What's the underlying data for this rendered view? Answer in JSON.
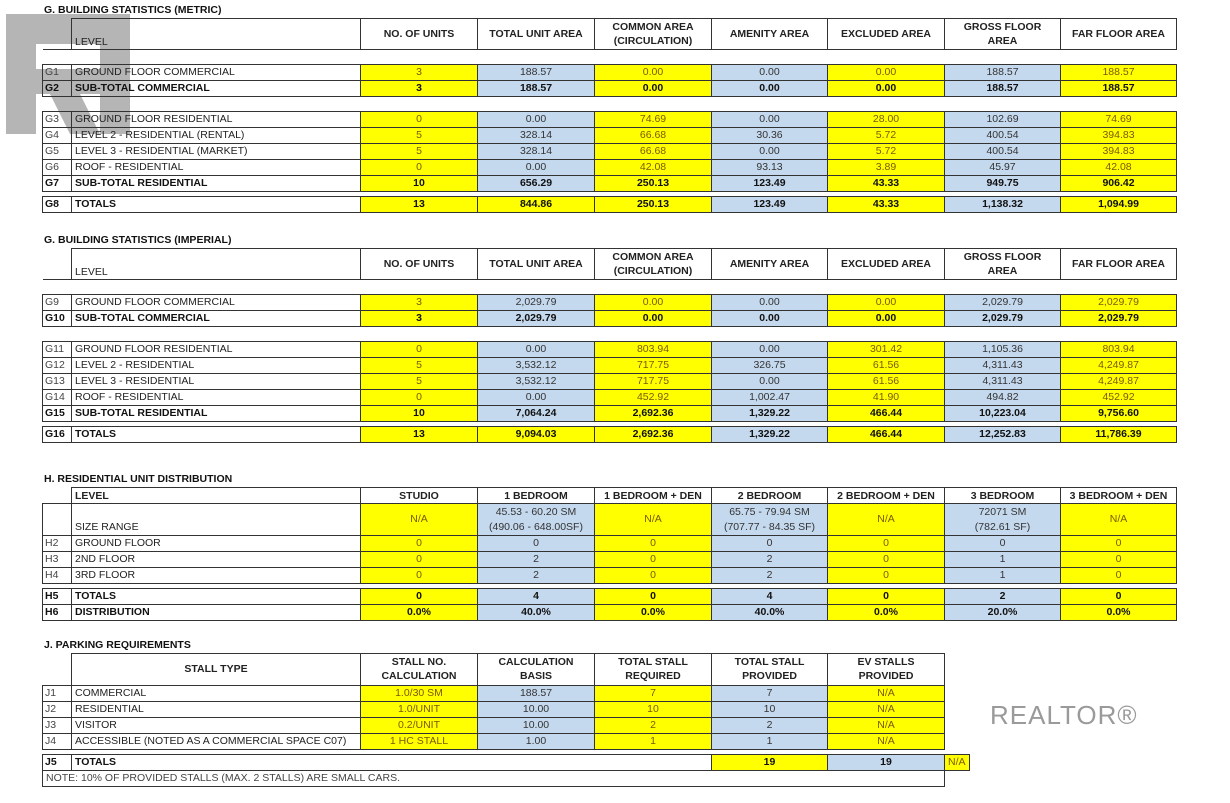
{
  "watermark": {
    "logo_text": "REALTOR®"
  },
  "colors": {
    "yellow": "#ffff00",
    "blue": "#c5d9ee"
  },
  "metric": {
    "title": "G. BUILDING STATISTICS (METRIC)",
    "headers": [
      "LEVEL",
      "NO. OF UNITS",
      "TOTAL UNIT AREA",
      "COMMON AREA (CIRCULATION)",
      "AMENITY AREA",
      "EXCLUDED AREA",
      "GROSS FLOOR AREA",
      "FAR FLOOR AREA"
    ],
    "groups": [
      [
        {
          "code": "G1",
          "level": "GROUND FLOOR COMMERCIAL",
          "values": [
            "3",
            "188.57",
            "0.00",
            "0.00",
            "0.00",
            "188.57",
            "188.57"
          ]
        },
        {
          "code": "G2",
          "level": "SUB-TOTAL COMMERCIAL",
          "bold": true,
          "values": [
            "3",
            "188.57",
            "0.00",
            "0.00",
            "0.00",
            "188.57",
            "188.57"
          ]
        }
      ],
      [
        {
          "code": "G3",
          "level": "GROUND FLOOR RESIDENTIAL",
          "values": [
            "0",
            "0.00",
            "74.69",
            "0.00",
            "28.00",
            "102.69",
            "74.69"
          ]
        },
        {
          "code": "G4",
          "level": "LEVEL 2 - RESIDENTIAL (RENTAL)",
          "values": [
            "5",
            "328.14",
            "66.68",
            "30.36",
            "5.72",
            "400.54",
            "394.83"
          ]
        },
        {
          "code": "G5",
          "level": "LEVEL 3 - RESIDENTIAL (MARKET)",
          "values": [
            "5",
            "328.14",
            "66.68",
            "0.00",
            "5.72",
            "400.54",
            "394.83"
          ]
        },
        {
          "code": "G6",
          "level": "ROOF - RESIDENTIAL",
          "values": [
            "0",
            "0.00",
            "42.08",
            "93.13",
            "3.89",
            "45.97",
            "42.08"
          ]
        },
        {
          "code": "G7",
          "level": "SUB-TOTAL RESIDENTIAL",
          "bold": true,
          "values": [
            "10",
            "656.29",
            "250.13",
            "123.49",
            "43.33",
            "949.75",
            "906.42"
          ]
        }
      ],
      [
        {
          "code": "G8",
          "level": "TOTALS",
          "bold": true,
          "totals": true,
          "values": [
            "13",
            "844.86",
            "250.13",
            "123.49",
            "43.33",
            "1,138.32",
            "1,094.99"
          ]
        }
      ]
    ]
  },
  "imperial": {
    "title": "G. BUILDING STATISTICS (IMPERIAL)",
    "headers": [
      "LEVEL",
      "NO. OF UNITS",
      "TOTAL UNIT AREA",
      "COMMON AREA (CIRCULATION)",
      "AMENITY AREA",
      "EXCLUDED AREA",
      "GROSS FLOOR AREA",
      "FAR FLOOR AREA"
    ],
    "groups": [
      [
        {
          "code": "G9",
          "level": "GROUND FLOOR COMMERCIAL",
          "values": [
            "3",
            "2,029.79",
            "0.00",
            "0.00",
            "0.00",
            "2,029.79",
            "2,029.79"
          ]
        },
        {
          "code": "G10",
          "level": "SUB-TOTAL COMMERCIAL",
          "bold": true,
          "values": [
            "3",
            "2,029.79",
            "0.00",
            "0.00",
            "0.00",
            "2,029.79",
            "2,029.79"
          ]
        }
      ],
      [
        {
          "code": "G11",
          "level": "GROUND FLOOR RESIDENTIAL",
          "values": [
            "0",
            "0.00",
            "803.94",
            "0.00",
            "301.42",
            "1,105.36",
            "803.94"
          ]
        },
        {
          "code": "G12",
          "level": "LEVEL 2 - RESIDENTIAL",
          "values": [
            "5",
            "3,532.12",
            "717.75",
            "326.75",
            "61.56",
            "4,311.43",
            "4,249.87"
          ]
        },
        {
          "code": "G13",
          "level": "LEVEL 3 - RESIDENTIAL",
          "values": [
            "5",
            "3,532.12",
            "717.75",
            "0.00",
            "61.56",
            "4,311.43",
            "4,249.87"
          ]
        },
        {
          "code": "G14",
          "level": "ROOF - RESIDENTIAL",
          "values": [
            "0",
            "0.00",
            "452.92",
            "1,002.47",
            "41.90",
            "494.82",
            "452.92"
          ]
        },
        {
          "code": "G15",
          "level": "SUB-TOTAL RESIDENTIAL",
          "bold": true,
          "values": [
            "10",
            "7,064.24",
            "2,692.36",
            "1,329.22",
            "466.44",
            "10,223.04",
            "9,756.60"
          ]
        }
      ],
      [
        {
          "code": "G16",
          "level": "TOTALS",
          "bold": true,
          "totals": true,
          "values": [
            "13",
            "9,094.03",
            "2,692.36",
            "1,329.22",
            "466.44",
            "12,252.83",
            "11,786.39"
          ]
        }
      ]
    ]
  },
  "distribution": {
    "title": "H. RESIDENTIAL UNIT DISTRIBUTION",
    "headers": [
      "LEVEL",
      "STUDIO",
      "1 BEDROOM",
      "1 BEDROOM + DEN",
      "2 BEDROOM",
      "2 BEDROOM + DEN",
      "3 BEDROOM",
      "3 BEDROOM + DEN"
    ],
    "size_range": {
      "label": "SIZE RANGE",
      "values": [
        "N/A",
        "45.53 - 60.20 SM\n(490.06 - 648.00SF)",
        "N/A",
        "65.75 - 79.94 SM\n(707.77 - 84.35 SF)",
        "N/A",
        "72071 SM\n(782.61 SF)",
        "N/A"
      ]
    },
    "groups": [
      [
        {
          "code": "H2",
          "level": "GROUND FLOOR",
          "values": [
            "0",
            "0",
            "0",
            "0",
            "0",
            "0",
            "0"
          ]
        },
        {
          "code": "H3",
          "level": "2ND FLOOR",
          "values": [
            "0",
            "2",
            "0",
            "2",
            "0",
            "1",
            "0"
          ]
        },
        {
          "code": "H4",
          "level": "3RD  FLOOR",
          "values": [
            "0",
            "2",
            "0",
            "2",
            "0",
            "1",
            "0"
          ]
        }
      ],
      [
        {
          "code": "H5",
          "level": "TOTALS",
          "bold": true,
          "values": [
            "0",
            "4",
            "0",
            "4",
            "0",
            "2",
            "0"
          ]
        },
        {
          "code": "H6",
          "level": "DISTRIBUTION",
          "bold": true,
          "values": [
            "0.0%",
            "40.0%",
            "0.0%",
            "40.0%",
            "0.0%",
            "20.0%",
            "0.0%"
          ]
        }
      ]
    ]
  },
  "parking": {
    "title": "J. PARKING REQUIREMENTS",
    "headers": [
      "STALL TYPE",
      "STALL NO. CALCULATION",
      "CALCULATION BASIS",
      "TOTAL STALL REQUIRED",
      "TOTAL STALL PROVIDED",
      "EV STALLS PROVIDED"
    ],
    "rows": [
      {
        "code": "J1",
        "level": "COMMERCIAL",
        "values": [
          "1.0/30 SM",
          "188.57",
          "7",
          "7",
          "N/A"
        ]
      },
      {
        "code": "J2",
        "level": "RESIDENTIAL",
        "values": [
          "1.0/UNIT",
          "10.00",
          "10",
          "10",
          "N/A"
        ]
      },
      {
        "code": "J3",
        "level": "VISITOR",
        "values": [
          "0.2/UNIT",
          "10.00",
          "2",
          "2",
          "N/A"
        ]
      },
      {
        "code": "J4",
        "level": "ACCESSIBLE (NOTED AS A COMMERCIAL SPACE C07)",
        "values": [
          "1 HC STALL",
          "1.00",
          "1",
          "1",
          "N/A"
        ]
      }
    ],
    "totals": {
      "code": "J5",
      "level": "TOTALS",
      "required": "19",
      "provided": "19",
      "ev": "N/A"
    },
    "note": "NOTE: 10% OF PROVIDED STALLS (MAX. 2 STALLS) ARE SMALL CARS."
  }
}
